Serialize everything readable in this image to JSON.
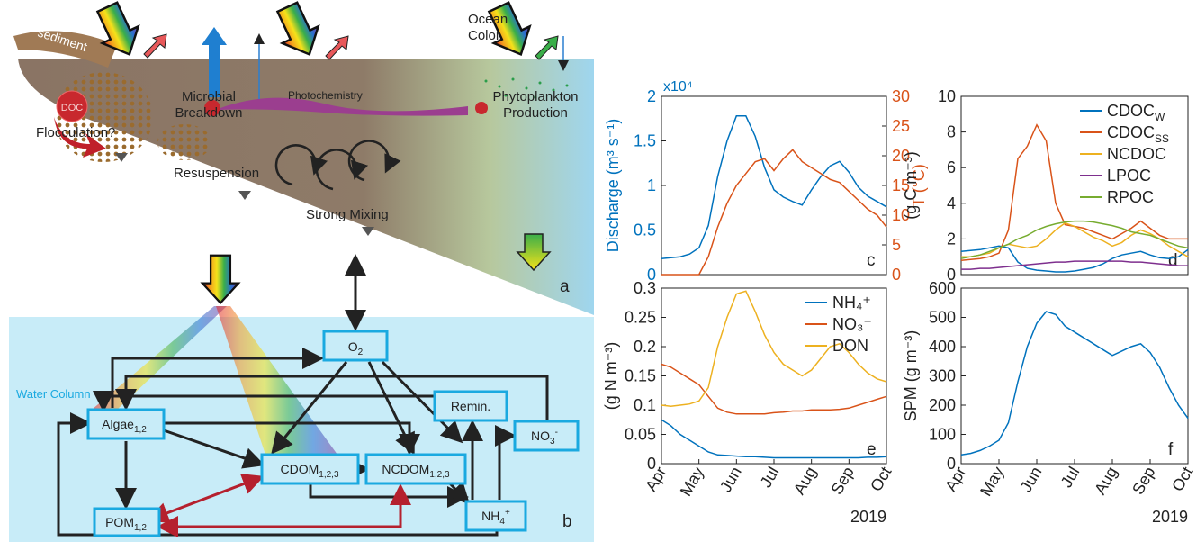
{
  "panel_a": {
    "sediment": "sediment",
    "doc": "DOC",
    "flocculation": "Flocculation?",
    "microbial_breakdown": [
      "Microbial",
      "Breakdown"
    ],
    "photochemistry": "Photochemistry",
    "phytoplankton": [
      "Phytoplankton",
      "Production"
    ],
    "ocean_color": [
      "Ocean",
      "Color"
    ],
    "resuspension": "Resuspension",
    "strong_mixing": "Strong Mixing",
    "panel_label": "a"
  },
  "panel_b": {
    "water_column": "Water Column",
    "panel_label": "b",
    "nodes": {
      "o2": {
        "label": "O",
        "sub": "2"
      },
      "algae": {
        "label": "Algae",
        "sub": "1,2"
      },
      "cdom": {
        "label": "CDOM",
        "sub": "1,2,3"
      },
      "ncdom": {
        "label": "NCDOM",
        "sub": "1,2,3"
      },
      "pom": {
        "label": "POM",
        "sub": "1,2"
      },
      "remin": {
        "label": "Remin."
      },
      "no3": {
        "label": "NO",
        "sub": "3",
        "sup": "-"
      },
      "nh4": {
        "label": "NH",
        "sub": "4",
        "sup": "+"
      }
    }
  },
  "chart_data": [
    {
      "type": "line",
      "panel_label": "c",
      "ylabel": "Discharge (m³ s⁻¹)",
      "yscale_label": "x10⁴",
      "y2label": "T (°C)",
      "xlim": [
        0,
        6
      ],
      "ylim": [
        0,
        2
      ],
      "yticks": [
        0,
        0.5,
        1,
        1.5,
        2
      ],
      "y2lim": [
        0,
        30
      ],
      "y2ticks": [
        0,
        5,
        10,
        15,
        20,
        25,
        30
      ],
      "x": [
        0,
        0.25,
        0.5,
        0.75,
        1,
        1.25,
        1.5,
        1.75,
        2,
        2.25,
        2.5,
        2.75,
        3,
        3.25,
        3.5,
        3.75,
        4,
        4.25,
        4.5,
        4.75,
        5,
        5.25,
        5.5,
        5.75,
        6
      ],
      "series": [
        {
          "color": "#0072bd",
          "values": [
            0.18,
            0.19,
            0.2,
            0.23,
            0.3,
            0.55,
            1.1,
            1.5,
            1.78,
            1.78,
            1.55,
            1.2,
            0.95,
            0.87,
            0.82,
            0.78,
            0.95,
            1.1,
            1.22,
            1.27,
            1.15,
            0.98,
            0.88,
            0.82,
            0.76
          ]
        },
        {
          "color": "#d95319",
          "axis": "y2",
          "values": [
            0,
            0,
            0,
            0,
            0,
            3,
            8,
            12,
            15,
            17,
            19,
            19.5,
            17.5,
            19.5,
            21,
            19,
            18,
            17,
            16,
            15.5,
            14,
            12.5,
            11,
            10,
            8
          ]
        }
      ]
    },
    {
      "type": "line",
      "panel_label": "d",
      "ylabel": "(g C m⁻³)",
      "xlim": [
        0,
        6
      ],
      "ylim": [
        0,
        10
      ],
      "yticks": [
        0,
        2,
        4,
        6,
        8,
        10
      ],
      "x": [
        0,
        0.25,
        0.5,
        0.75,
        1,
        1.25,
        1.5,
        1.75,
        2,
        2.25,
        2.5,
        2.75,
        3,
        3.25,
        3.5,
        3.75,
        4,
        4.25,
        4.5,
        4.75,
        5,
        5.25,
        5.5,
        5.75,
        6
      ],
      "series": [
        {
          "name": "CDOC",
          "name_sub": "W",
          "color": "#0072bd",
          "values": [
            1.3,
            1.35,
            1.4,
            1.5,
            1.6,
            1.5,
            0.7,
            0.35,
            0.25,
            0.2,
            0.15,
            0.15,
            0.2,
            0.3,
            0.4,
            0.6,
            0.9,
            1.1,
            1.2,
            1.3,
            1.1,
            0.95,
            0.9,
            1.0,
            1.4
          ]
        },
        {
          "name": "CDOC",
          "name_sub": "SS",
          "color": "#d95319",
          "values": [
            0.8,
            0.85,
            0.9,
            1.0,
            1.2,
            2.5,
            6.5,
            7.2,
            8.4,
            7.5,
            4.0,
            2.8,
            2.7,
            2.6,
            2.4,
            2.2,
            2.0,
            2.3,
            2.6,
            3.0,
            2.6,
            2.2,
            2.0,
            2.0,
            2.0
          ]
        },
        {
          "name": "NCDOC",
          "color": "#edb120",
          "values": [
            1.0,
            1.0,
            1.1,
            1.2,
            1.5,
            1.7,
            1.6,
            1.5,
            1.6,
            2.0,
            2.5,
            2.9,
            2.7,
            2.4,
            2.1,
            1.9,
            1.6,
            1.8,
            2.2,
            2.5,
            2.3,
            2.0,
            1.6,
            1.3,
            1.0
          ]
        },
        {
          "name": "LPOC",
          "color": "#7e2f8e",
          "values": [
            0.3,
            0.3,
            0.35,
            0.35,
            0.4,
            0.45,
            0.5,
            0.55,
            0.6,
            0.65,
            0.7,
            0.7,
            0.75,
            0.75,
            0.75,
            0.75,
            0.75,
            0.75,
            0.7,
            0.7,
            0.65,
            0.6,
            0.55,
            0.5,
            0.5
          ]
        },
        {
          "name": "RPOC",
          "color": "#77ac30",
          "values": [
            0.9,
            1.0,
            1.1,
            1.3,
            1.5,
            1.7,
            2.0,
            2.2,
            2.5,
            2.7,
            2.85,
            2.95,
            3.0,
            3.0,
            2.95,
            2.85,
            2.75,
            2.6,
            2.4,
            2.3,
            2.2,
            2.0,
            1.8,
            1.6,
            1.5
          ]
        }
      ]
    },
    {
      "type": "line",
      "panel_label": "e",
      "ylabel": "(g N m⁻³)",
      "xlabel": "2019",
      "xlim": [
        0,
        6
      ],
      "ylim": [
        0,
        0.3
      ],
      "yticks": [
        0,
        0.05,
        0.1,
        0.15,
        0.2,
        0.25,
        0.3
      ],
      "xticks": [
        {
          "value": 0,
          "label": "Apr"
        },
        {
          "value": 1,
          "label": "May"
        },
        {
          "value": 2,
          "label": "Jun"
        },
        {
          "value": 3,
          "label": "Jul"
        },
        {
          "value": 4,
          "label": "Aug"
        },
        {
          "value": 5,
          "label": "Sep"
        },
        {
          "value": 6,
          "label": "Oct"
        }
      ],
      "x": [
        0,
        0.25,
        0.5,
        0.75,
        1,
        1.25,
        1.5,
        1.75,
        2,
        2.25,
        2.5,
        2.75,
        3,
        3.25,
        3.5,
        3.75,
        4,
        4.25,
        4.5,
        4.75,
        5,
        5.25,
        5.5,
        5.75,
        6
      ],
      "series": [
        {
          "name": "NH₄⁺",
          "color": "#0072bd",
          "values": [
            0.075,
            0.065,
            0.05,
            0.04,
            0.03,
            0.02,
            0.015,
            0.014,
            0.013,
            0.012,
            0.012,
            0.011,
            0.01,
            0.01,
            0.01,
            0.01,
            0.01,
            0.01,
            0.01,
            0.01,
            0.01,
            0.01,
            0.011,
            0.011,
            0.012
          ]
        },
        {
          "name": "NO₃⁻",
          "color": "#d95319",
          "values": [
            0.17,
            0.165,
            0.155,
            0.145,
            0.135,
            0.115,
            0.095,
            0.088,
            0.085,
            0.085,
            0.085,
            0.085,
            0.087,
            0.088,
            0.09,
            0.09,
            0.092,
            0.092,
            0.092,
            0.093,
            0.095,
            0.1,
            0.105,
            0.11,
            0.115
          ]
        },
        {
          "name": "DON",
          "color": "#edb120",
          "values": [
            0.1,
            0.098,
            0.1,
            0.102,
            0.107,
            0.13,
            0.2,
            0.25,
            0.29,
            0.295,
            0.26,
            0.22,
            0.19,
            0.17,
            0.16,
            0.15,
            0.16,
            0.18,
            0.2,
            0.205,
            0.19,
            0.17,
            0.155,
            0.145,
            0.14
          ]
        }
      ]
    },
    {
      "type": "line",
      "panel_label": "f",
      "ylabel": "SPM (g m⁻³)",
      "xlabel": "2019",
      "xlim": [
        0,
        6
      ],
      "ylim": [
        0,
        600
      ],
      "yticks": [
        0,
        100,
        200,
        300,
        400,
        500,
        600
      ],
      "xticks": [
        {
          "value": 0,
          "label": "Apr"
        },
        {
          "value": 1,
          "label": "May"
        },
        {
          "value": 2,
          "label": "Jun"
        },
        {
          "value": 3,
          "label": "Jul"
        },
        {
          "value": 4,
          "label": "Aug"
        },
        {
          "value": 5,
          "label": "Sep"
        },
        {
          "value": 6,
          "label": "Oct"
        }
      ],
      "x": [
        0,
        0.25,
        0.5,
        0.75,
        1,
        1.25,
        1.5,
        1.75,
        2,
        2.25,
        2.5,
        2.75,
        3,
        3.25,
        3.5,
        3.75,
        4,
        4.25,
        4.5,
        4.75,
        5,
        5.25,
        5.5,
        5.75,
        6
      ],
      "series": [
        {
          "color": "#0072bd",
          "values": [
            30,
            35,
            45,
            60,
            80,
            140,
            280,
            400,
            480,
            520,
            510,
            470,
            450,
            430,
            410,
            390,
            370,
            385,
            400,
            410,
            380,
            330,
            260,
            200,
            155
          ]
        }
      ]
    }
  ]
}
